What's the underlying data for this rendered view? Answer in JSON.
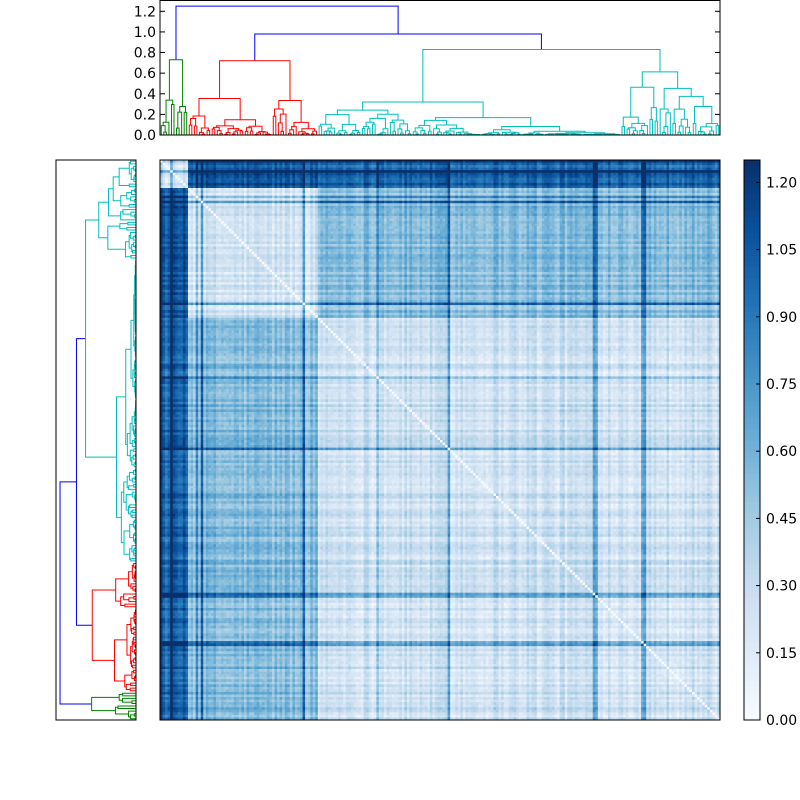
{
  "chart_data": {
    "type": "heatmap",
    "title": "",
    "description_free": true,
    "matrix": {
      "kind": "pairwise distance matrix (clustered)",
      "n_items": 220,
      "diagonal_value": 0.0,
      "clusters_in_order": [
        {
          "name": "green",
          "fraction": 0.05,
          "intra_mean": 0.18,
          "color": "#008000"
        },
        {
          "name": "red",
          "fraction": 0.23,
          "intra_mean": 0.22,
          "color": "#ff0000"
        },
        {
          "name": "cyan",
          "fraction": 0.72,
          "intra_mean": 0.28,
          "color": "#00bfbf"
        }
      ],
      "between_mean": {
        "green-red": 1.05,
        "green-cyan": 1.0,
        "red-cyan": 0.55
      },
      "colormap": "Blues",
      "vmin": 0.0,
      "vmax": 1.25
    },
    "top_dendrogram": {
      "ylabel": "",
      "ylim": [
        0.0,
        1.3
      ],
      "ticks": [
        "0.0",
        "0.2",
        "0.4",
        "0.6",
        "0.8",
        "1.0",
        "1.2"
      ],
      "tick_values": [
        0.0,
        0.2,
        0.4,
        0.6,
        0.8,
        1.0,
        1.2
      ],
      "root_height": 1.25,
      "merge_heights": {
        "green": 0.73,
        "red": 0.72,
        "cyan": 0.83,
        "red_cyan": 0.98
      },
      "link_color_above_threshold": "#0000ff"
    },
    "left_dendrogram": {
      "mirrors": "top_dendrogram",
      "orientation": "left"
    },
    "colorbar": {
      "ticks": [
        "0.00",
        "0.15",
        "0.30",
        "0.45",
        "0.60",
        "0.75",
        "0.90",
        "1.05",
        "1.20"
      ],
      "tick_values": [
        0.0,
        0.15,
        0.3,
        0.45,
        0.6,
        0.75,
        0.9,
        1.05,
        1.2
      ],
      "range": [
        0.0,
        1.25
      ]
    }
  },
  "colors": {
    "blue_link": "#0000ff",
    "green_cluster": "#008000",
    "red_cluster": "#ff0000",
    "cyan_cluster": "#00bfbf",
    "cmap_low": "#f7fbff",
    "cmap_high": "#08306b"
  }
}
